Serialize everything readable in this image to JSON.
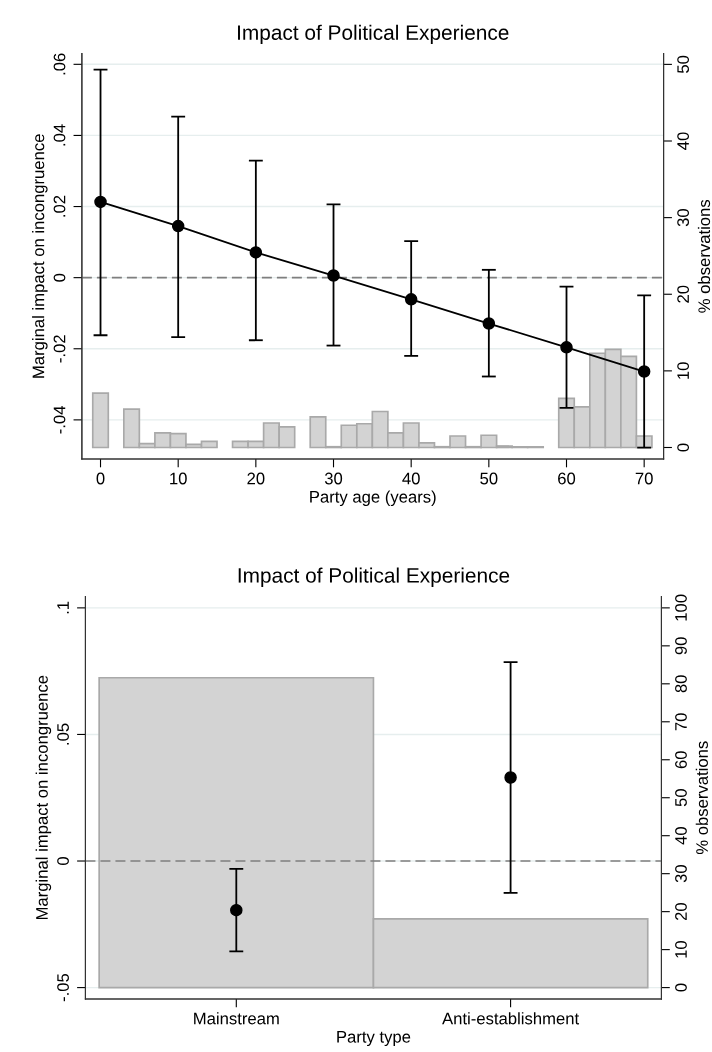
{
  "chart_data": [
    {
      "type": "line",
      "title": "Impact of Political Experience",
      "xlabel": "Party age (years)",
      "ylabel": "Marginal impact on incongruence",
      "y2label": "% observations",
      "xlim": [
        -2.4,
        72.5
      ],
      "xticks": [
        0,
        10,
        20,
        30,
        40,
        50,
        60,
        70
      ],
      "ylim": [
        -0.051,
        0.063
      ],
      "yticks": [
        {
          "value": -0.04,
          "label": "-.04"
        },
        {
          "value": -0.02,
          "label": "-.02"
        },
        0,
        {
          "value": 0.02,
          "label": ".02"
        },
        {
          "value": 0.04,
          "label": ".04"
        },
        {
          "value": 0.06,
          "label": ".06"
        }
      ],
      "y2lim": [
        -1.5,
        51.4
      ],
      "y2ticks": [
        0,
        10,
        20,
        30,
        40,
        50
      ],
      "grid": "y",
      "marker": "circle",
      "line_style": "solid",
      "ref_lines": [
        {
          "axis": "y",
          "value": 0,
          "color": "#7f7f7f",
          "line_style": "dashed"
        }
      ],
      "series": [
        {
          "type": "bar",
          "axis": "y2",
          "color": "#d3d3d3",
          "x": [
            0,
            2,
            4,
            6,
            8,
            10,
            12,
            14,
            16,
            18,
            20,
            22,
            24,
            26,
            28,
            30,
            32,
            34,
            36,
            38,
            40,
            42,
            44,
            46,
            48,
            50,
            52,
            54,
            56,
            58,
            60,
            62,
            64,
            66,
            68,
            70
          ],
          "values": [
            7.1,
            null,
            5.0,
            0.5,
            1.9,
            1.8,
            0.4,
            0.8,
            null,
            0.8,
            0.8,
            3.2,
            2.7,
            null,
            4.0,
            0.1,
            2.9,
            3.1,
            4.7,
            1.9,
            3.2,
            0.6,
            0.1,
            1.5,
            0.1,
            1.6,
            0.2,
            0.1,
            0.1,
            null,
            6.4,
            5.3,
            12.3,
            12.8,
            11.9,
            1.5
          ]
        },
        {
          "color": "#000000",
          "x": [
            0,
            10,
            20,
            30,
            40,
            50,
            60,
            70
          ],
          "values": [
            0.0213,
            0.0145,
            0.0071,
            0.0006,
            -0.0061,
            -0.0129,
            -0.0196,
            -0.0264
          ],
          "errors": [
            [
              -0.0162,
              0.0585
            ],
            [
              -0.0167,
              0.0453
            ],
            [
              -0.0176,
              0.0329
            ],
            [
              -0.0191,
              0.0206
            ],
            [
              -0.022,
              0.0103
            ],
            [
              -0.0278,
              0.0022
            ],
            [
              -0.0366,
              -0.0025
            ],
            [
              -0.0478,
              -0.005
            ]
          ]
        }
      ]
    },
    {
      "type": "scatter",
      "title": "Impact of Political Experience",
      "xlabel": "Party type",
      "ylabel": "Marginal impact on incongruence",
      "y2label": "% observations",
      "categories": [
        "Mainstream",
        "Anti-establishment"
      ],
      "ylim": [
        -0.0545,
        0.1045
      ],
      "yticks": [
        {
          "value": -0.05,
          "label": "-.05"
        },
        0,
        {
          "value": 0.05,
          "label": ".05"
        },
        {
          "value": 0.1,
          "label": ".1"
        }
      ],
      "y2lim": [
        -3.0,
        103
      ],
      "y2ticks": [
        0,
        10,
        20,
        30,
        40,
        50,
        60,
        70,
        80,
        90,
        100
      ],
      "grid": "y",
      "marker": "circle",
      "ref_lines": [
        {
          "axis": "y",
          "value": 0,
          "color": "#7f7f7f",
          "line_style": "dashed"
        }
      ],
      "series": [
        {
          "type": "bar",
          "axis": "y2",
          "color": "#d3d3d3",
          "values": [
            81.6,
            18.1
          ]
        },
        {
          "color": "#000000",
          "values": [
            -0.0194,
            0.033
          ],
          "errors": [
            [
              -0.0357,
              -0.0031
            ],
            [
              -0.0126,
              0.0786
            ]
          ]
        }
      ]
    }
  ]
}
